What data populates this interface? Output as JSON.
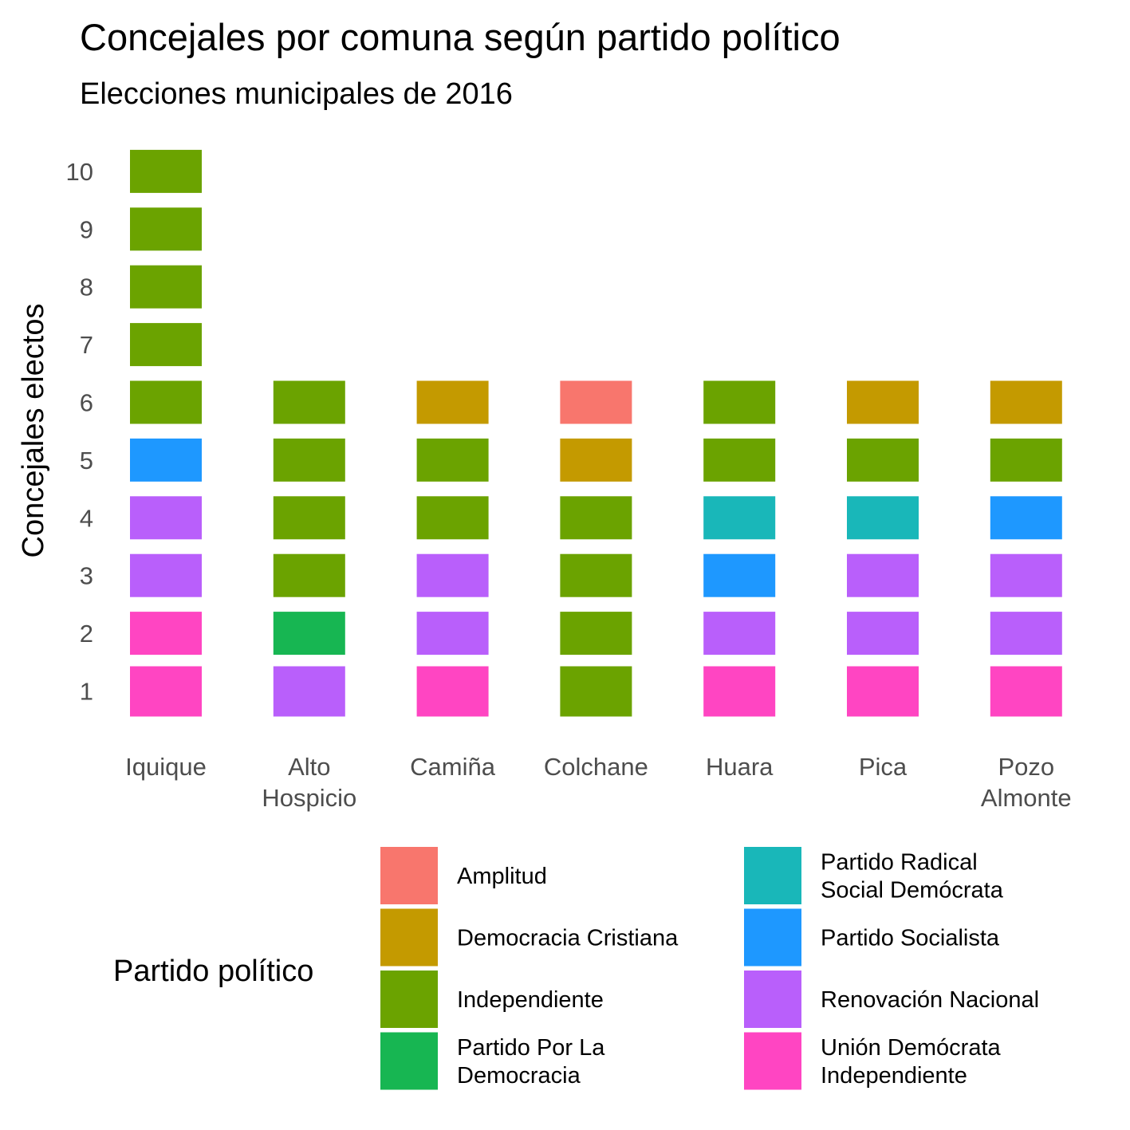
{
  "chart_data": {
    "type": "bar",
    "subtype": "stacked-unit-tiles",
    "title": "Concejales por comuna según partido político",
    "subtitle": "Elecciones municipales de 2016",
    "xlabel": "",
    "ylabel": "Concejales electos",
    "categories": [
      [
        "Iquique"
      ],
      [
        "Alto",
        "Hospicio"
      ],
      [
        "Camiña"
      ],
      [
        "Colchane"
      ],
      [
        "Huara"
      ],
      [
        "Pica"
      ],
      [
        "Pozo",
        "Almonte"
      ]
    ],
    "yticks": [
      1,
      2,
      3,
      4,
      5,
      6,
      7,
      8,
      9,
      10
    ],
    "ylim": [
      0.5,
      10.5
    ],
    "grid": false,
    "legend_position": "bottom",
    "legend_title": "Partido político",
    "parties": [
      {
        "name": [
          "Amplitud"
        ],
        "color": "#F8766D"
      },
      {
        "name": [
          "Democracia Cristiana"
        ],
        "color": "#C49A00"
      },
      {
        "name": [
          "Independiente"
        ],
        "color": "#6BA300"
      },
      {
        "name": [
          "Partido Por La",
          "Democracia"
        ],
        "color": "#17B652"
      },
      {
        "name": [
          "Partido Radical",
          "Social Demócrata"
        ],
        "color": "#19B7B9"
      },
      {
        "name": [
          "Partido Socialista"
        ],
        "color": "#1E98FF"
      },
      {
        "name": [
          "Renovación Nacional"
        ],
        "color": "#B95FFB"
      },
      {
        "name": [
          "Unión Demócrata",
          "Independiente"
        ],
        "color": "#FF45C2"
      }
    ],
    "stacks": [
      [
        7,
        7,
        6,
        6,
        5,
        2,
        2,
        2,
        2,
        2
      ],
      [
        6,
        3,
        2,
        2,
        2,
        2
      ],
      [
        7,
        6,
        6,
        2,
        2,
        1
      ],
      [
        2,
        2,
        2,
        2,
        1,
        0
      ],
      [
        7,
        6,
        5,
        4,
        2,
        2
      ],
      [
        7,
        6,
        6,
        4,
        2,
        1
      ],
      [
        7,
        6,
        6,
        5,
        2,
        1
      ]
    ]
  }
}
